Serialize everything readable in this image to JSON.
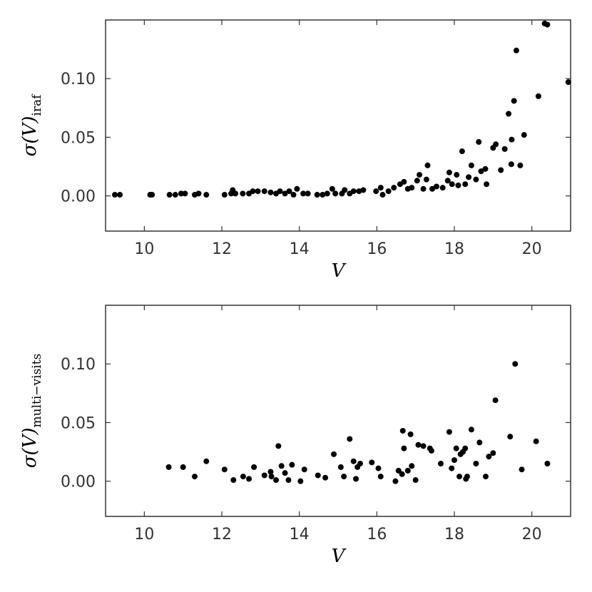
{
  "chart_data": [
    {
      "type": "scatter",
      "xlabel": "V",
      "ylabel": "σ(V)",
      "ylabel_sub": "iraf",
      "color": "#000000",
      "xlim": [
        9,
        21
      ],
      "ylim": [
        -0.03,
        0.15
      ],
      "xticks": [
        10,
        12,
        14,
        16,
        18,
        20
      ],
      "yticks": [
        {
          "value": 0,
          "label": "0.00"
        },
        {
          "value": 0.05,
          "label": "0.05"
        },
        {
          "value": 0.1,
          "label": "0.10"
        }
      ],
      "x": [
        9.24,
        9.37,
        10.15,
        10.2,
        10.65,
        10.8,
        10.95,
        11.05,
        11.3,
        11.4,
        11.6,
        12.07,
        12.24,
        12.28,
        12.35,
        12.54,
        12.7,
        12.8,
        12.93,
        13.1,
        13.26,
        13.4,
        13.5,
        13.63,
        13.74,
        13.85,
        13.94,
        14.1,
        14.22,
        14.46,
        14.6,
        14.72,
        14.85,
        14.93,
        15.1,
        15.17,
        15.3,
        15.4,
        15.54,
        15.65,
        15.98,
        16.1,
        16.15,
        16.3,
        16.44,
        16.6,
        16.7,
        16.8,
        16.9,
        17.04,
        17.1,
        17.2,
        17.28,
        17.31,
        17.43,
        17.54,
        17.7,
        17.83,
        17.87,
        17.94,
        18.06,
        18.1,
        18.2,
        18.28,
        18.37,
        18.44,
        18.56,
        18.63,
        18.69,
        18.8,
        18.83,
        19.0,
        19.07,
        19.2,
        19.3,
        19.4,
        19.48,
        19.54,
        19.6,
        19.7,
        19.8,
        20.17,
        20.33,
        20.4,
        20.94,
        19.47
      ],
      "values": [
        0.001,
        0.001,
        0.001,
        0.001,
        0.001,
        0.001,
        0.002,
        0.002,
        0.001,
        0.002,
        0.001,
        0.001,
        0.002,
        0.005,
        0.002,
        0.002,
        0.002,
        0.004,
        0.004,
        0.004,
        0.003,
        0.002,
        0.004,
        0.002,
        0.004,
        0.001,
        0.006,
        0.002,
        0.002,
        0.001,
        0.001,
        0.002,
        0.006,
        0.002,
        0.002,
        0.005,
        0.002,
        0.004,
        0.004,
        0.005,
        0.004,
        0.007,
        0.001,
        0.004,
        0.007,
        0.01,
        0.012,
        0.006,
        0.007,
        0.013,
        0.018,
        0.006,
        0.014,
        0.026,
        0.006,
        0.008,
        0.007,
        0.013,
        0.02,
        0.01,
        0.018,
        0.009,
        0.038,
        0.01,
        0.016,
        0.026,
        0.014,
        0.046,
        0.021,
        0.023,
        0.01,
        0.041,
        0.044,
        0.022,
        0.04,
        0.07,
        0.048,
        0.081,
        0.124,
        0.026,
        0.052,
        0.085,
        0.147,
        0.146,
        0.097,
        0.027
      ]
    },
    {
      "type": "scatter",
      "xlabel": "V",
      "ylabel": "σ(V)",
      "ylabel_sub": "multi−visits",
      "color": "#000000",
      "xlim": [
        9,
        21
      ],
      "ylim": [
        -0.03,
        0.15
      ],
      "xticks": [
        10,
        12,
        14,
        16,
        18,
        20
      ],
      "yticks": [
        {
          "value": 0,
          "label": "0.00"
        },
        {
          "value": 0.05,
          "label": "0.05"
        },
        {
          "value": 0.1,
          "label": "0.10"
        }
      ],
      "x": [
        10.63,
        11.0,
        11.3,
        11.6,
        12.07,
        12.3,
        12.55,
        12.7,
        12.83,
        13.1,
        13.26,
        13.28,
        13.4,
        13.46,
        13.54,
        13.63,
        13.72,
        13.81,
        14.03,
        14.13,
        14.48,
        14.67,
        14.89,
        15.07,
        15.15,
        15.3,
        15.4,
        15.46,
        15.5,
        15.57,
        15.87,
        16.04,
        16.1,
        16.48,
        16.56,
        16.65,
        16.67,
        16.7,
        16.8,
        16.87,
        16.9,
        17.0,
        17.07,
        17.2,
        17.37,
        17.41,
        17.65,
        17.87,
        17.93,
        18.0,
        18.05,
        18.13,
        18.16,
        18.22,
        18.28,
        18.3,
        18.33,
        18.44,
        18.56,
        18.65,
        18.81,
        18.89,
        19.0,
        19.06,
        19.44,
        19.57,
        19.74,
        20.11,
        20.4
      ],
      "values": [
        0.012,
        0.012,
        0.004,
        0.017,
        0.01,
        0.001,
        0.004,
        0.002,
        0.012,
        0.005,
        0.008,
        0.004,
        0.001,
        0.03,
        0.013,
        0.007,
        0.001,
        0.014,
        0.0,
        0.01,
        0.005,
        0.003,
        0.023,
        0.012,
        0.004,
        0.036,
        0.017,
        0.002,
        0.012,
        0.015,
        0.016,
        0.011,
        0.004,
        0.0,
        0.009,
        0.006,
        0.043,
        0.028,
        0.009,
        0.04,
        0.013,
        0.001,
        0.031,
        0.03,
        0.028,
        0.026,
        0.015,
        0.042,
        0.011,
        0.018,
        0.028,
        0.004,
        0.023,
        0.025,
        0.028,
        0.002,
        0.004,
        0.044,
        0.015,
        0.033,
        0.004,
        0.021,
        0.024,
        0.069,
        0.038,
        0.1,
        0.01,
        0.034,
        0.015
      ]
    }
  ]
}
